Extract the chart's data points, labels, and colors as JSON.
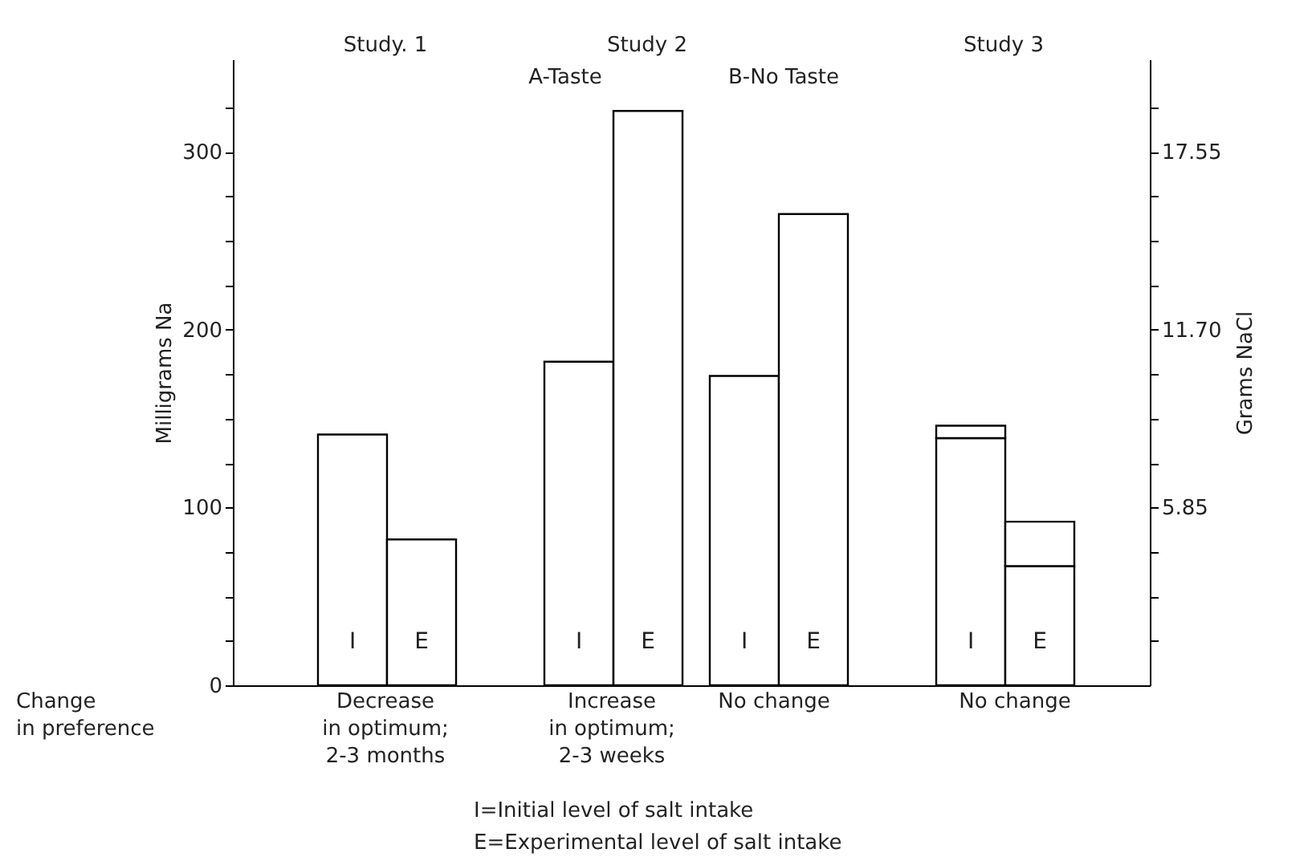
{
  "chart_data": {
    "type": "bar",
    "stacked": true,
    "grid": false,
    "categories": [
      "I",
      "E",
      "I",
      "E",
      "I",
      "E",
      "I",
      "E"
    ],
    "series": [
      {
        "color": "#ffffff",
        "values": [
          141,
          82,
          182,
          323,
          174,
          265,
          139,
          67
        ]
      },
      {
        "color": "#ffffff",
        "values": [
          null,
          null,
          null,
          null,
          null,
          null,
          7,
          25
        ]
      }
    ],
    "ylabel": "Milligrams Na",
    "y2label": "Grams NaCl",
    "ylim": [
      0,
      352
    ],
    "yticks": [
      0,
      {
        "value": 25,
        "label": null
      },
      {
        "value": 50,
        "label": null
      },
      {
        "value": 75,
        "label": null
      },
      100,
      {
        "value": 125,
        "label": null
      },
      {
        "value": 150,
        "label": null
      },
      {
        "value": 175,
        "label": null
      },
      200,
      {
        "value": 225,
        "label": null
      },
      {
        "value": 250,
        "label": null
      },
      {
        "value": 275,
        "label": null
      },
      300,
      {
        "value": 325,
        "label": null
      }
    ],
    "y2lim": [
      0,
      20.6
    ],
    "y2ticks": [
      {
        "value": 1.4625,
        "label": null
      },
      {
        "value": 2.925,
        "label": null
      },
      {
        "value": 4.3875,
        "label": null
      },
      5.85,
      {
        "value": 7.3125,
        "label": null
      },
      {
        "value": 8.775,
        "label": null
      },
      {
        "value": 10.2375,
        "label": null
      },
      {
        "value": 11.7,
        "label": "11.70"
      },
      {
        "value": 13.1625,
        "label": null
      },
      {
        "value": 14.625,
        "label": null
      },
      {
        "value": 16.0875,
        "label": null
      },
      17.55,
      {
        "value": 19.0125,
        "label": null
      }
    ],
    "annotations": [
      "Study. 1",
      "Study 2",
      "A-Taste",
      "B-No Taste",
      "Study 3",
      "Change\nin preference",
      "Decrease\nin optimum;\n2-3 months",
      "Increase\nin optimum;\n2-3 weeks",
      "No change",
      "No change",
      "I=Initial level of salt intake",
      "E=Experimental level of salt intake"
    ]
  }
}
